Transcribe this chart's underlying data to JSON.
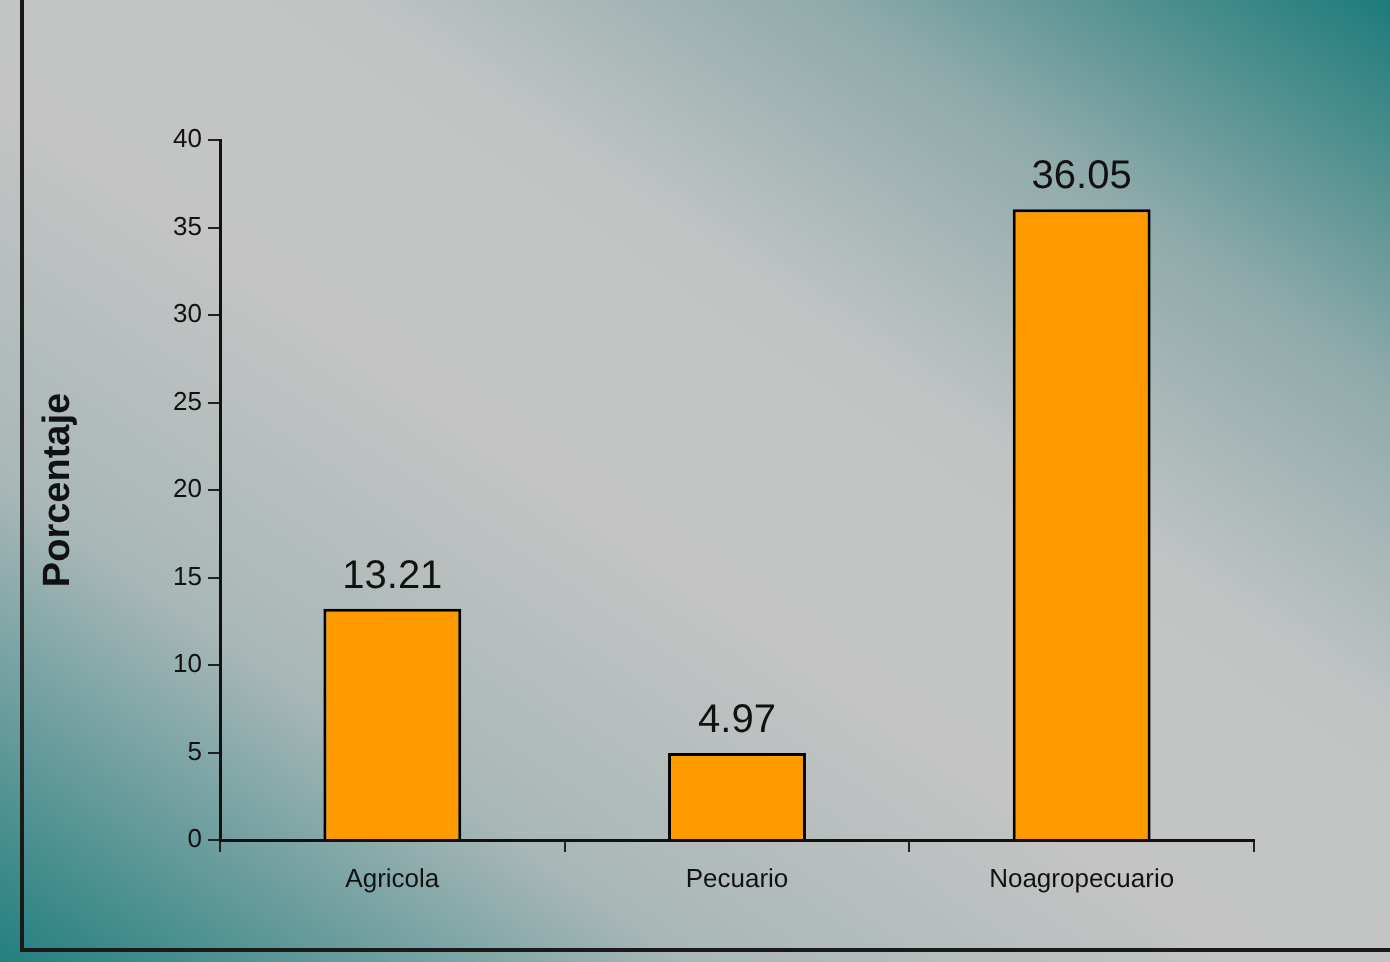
{
  "chart_data": {
    "type": "bar",
    "ylabel": "Porcentaje",
    "categories": [
      "Agricola",
      "Pecuario",
      "Noagropecuario"
    ],
    "values": [
      13.21,
      4.97,
      36.05
    ],
    "color": "#ff9900",
    "ylim": [
      0,
      40
    ],
    "yticks": [
      0,
      5,
      10,
      15,
      20,
      25,
      30,
      35,
      40
    ],
    "data_labels": true
  }
}
